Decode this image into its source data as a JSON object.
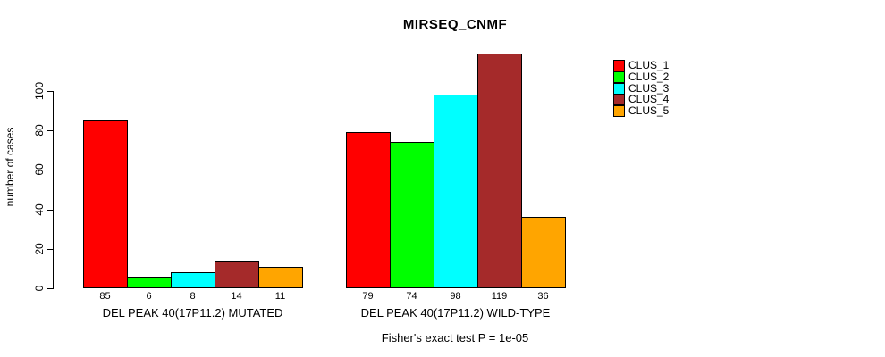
{
  "chart_data": {
    "type": "bar",
    "title": "MIRSEQ_CNMF",
    "ylabel": "number of cases",
    "xlabel": "",
    "ylim": [
      0,
      122
    ],
    "yticks": [
      0,
      20,
      40,
      60,
      80,
      100
    ],
    "grid": false,
    "legend_position": "right",
    "categories": [
      "DEL PEAK 40(17P11.2) MUTATED",
      "DEL PEAK 40(17P11.2) WILD-TYPE"
    ],
    "series": [
      {
        "name": "CLUS_1",
        "color": "#FF0000",
        "values": [
          85,
          79
        ]
      },
      {
        "name": "CLUS_2",
        "color": "#00FF00",
        "values": [
          6,
          74
        ]
      },
      {
        "name": "CLUS_3",
        "color": "#00FFFF",
        "values": [
          8,
          98
        ]
      },
      {
        "name": "CLUS_4",
        "color": "#A52A2A",
        "values": [
          14,
          119
        ]
      },
      {
        "name": "CLUS_5",
        "color": "#FFA500",
        "values": [
          11,
          36
        ]
      }
    ],
    "bar_value_labels": true,
    "annotation": "Fisher's exact test P = 1e-05"
  }
}
